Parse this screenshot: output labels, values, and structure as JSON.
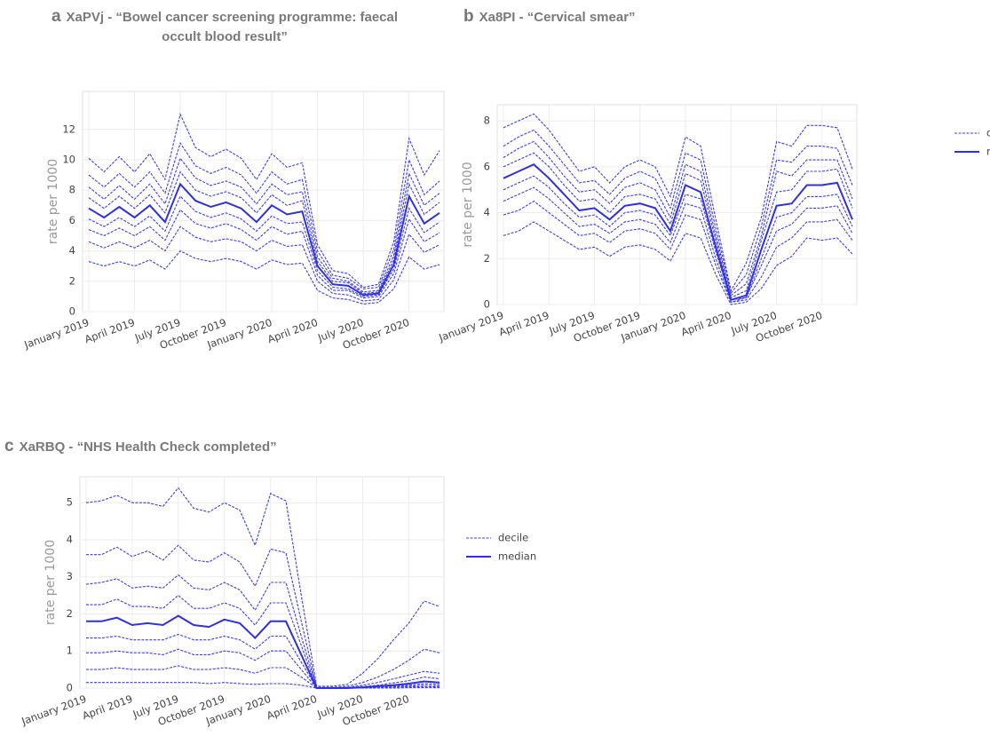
{
  "chart_data": [
    {
      "type": "line",
      "panel_label": "a",
      "title": "XaPVj -  “Bowel cancer screening programme: faecal occult blood result”",
      "ylabel": "rate per 1000",
      "categories": [
        "January 2019",
        null,
        null,
        "April 2019",
        null,
        null,
        "July 2019",
        null,
        null,
        "October 2019",
        null,
        null,
        "January 2020",
        null,
        null,
        "April 2020",
        null,
        null,
        "July 2020",
        null,
        null,
        "October 2020",
        null,
        null
      ],
      "ylim": [
        0,
        14.5
      ],
      "yticks": [
        0,
        2,
        4,
        6,
        8,
        10,
        12
      ],
      "grid": true,
      "legend": false,
      "deciles": {
        "color": "#3c3cf0",
        "dashed": true,
        "lines": [
          [
            3.3,
            3.0,
            3.3,
            3.0,
            3.4,
            2.8,
            4.0,
            3.5,
            3.3,
            3.5,
            3.3,
            2.8,
            3.4,
            3.1,
            3.2,
            1.4,
            0.9,
            0.8,
            0.5,
            0.6,
            1.5,
            3.6,
            2.8,
            3.1
          ],
          [
            4.6,
            4.2,
            4.6,
            4.2,
            4.7,
            4.0,
            5.6,
            4.9,
            4.6,
            4.8,
            4.6,
            4.0,
            4.7,
            4.3,
            4.4,
            2.0,
            1.2,
            1.1,
            0.7,
            0.8,
            2.1,
            5.1,
            3.9,
            4.4
          ],
          [
            5.4,
            5.0,
            5.5,
            5.0,
            5.6,
            4.7,
            6.7,
            5.8,
            5.5,
            5.8,
            5.4,
            4.7,
            5.6,
            5.1,
            5.3,
            2.4,
            1.4,
            1.4,
            0.9,
            1.0,
            2.5,
            6.1,
            4.6,
            5.2
          ],
          [
            6.1,
            5.6,
            6.2,
            5.6,
            6.3,
            5.3,
            7.6,
            6.6,
            6.2,
            6.5,
            6.1,
            5.3,
            6.3,
            5.8,
            5.9,
            2.7,
            1.6,
            1.5,
            1.0,
            1.1,
            2.8,
            6.8,
            5.2,
            5.9
          ],
          [
            7.5,
            6.8,
            7.6,
            6.8,
            7.7,
            6.5,
            9.2,
            8.0,
            7.6,
            7.9,
            7.5,
            6.5,
            7.7,
            7.0,
            7.3,
            3.3,
            2.0,
            1.9,
            1.2,
            1.3,
            3.4,
            8.4,
            6.4,
            7.2
          ],
          [
            8.2,
            7.4,
            8.3,
            7.4,
            8.4,
            7.1,
            10.1,
            8.8,
            8.3,
            8.6,
            8.2,
            7.1,
            8.4,
            7.7,
            7.9,
            3.6,
            2.2,
            2.0,
            1.3,
            1.4,
            3.7,
            9.1,
            7.0,
            7.8
          ],
          [
            9.0,
            8.2,
            9.1,
            8.2,
            9.2,
            7.8,
            11.1,
            9.6,
            9.1,
            9.5,
            9.0,
            7.8,
            9.2,
            8.4,
            8.7,
            4.0,
            2.4,
            2.2,
            1.5,
            1.6,
            4.1,
            10.0,
            7.7,
            8.6
          ],
          [
            10.1,
            9.2,
            10.2,
            9.2,
            10.4,
            8.7,
            13.0,
            10.8,
            10.2,
            10.7,
            10.1,
            8.7,
            10.4,
            9.5,
            9.8,
            4.4,
            2.7,
            2.5,
            1.6,
            1.8,
            4.6,
            11.4,
            9.0,
            10.6
          ]
        ]
      },
      "median": {
        "color": "#3030e0",
        "values": [
          6.8,
          6.2,
          6.9,
          6.2,
          7.0,
          5.9,
          8.4,
          7.3,
          6.9,
          7.2,
          6.8,
          5.9,
          7.0,
          6.4,
          6.6,
          3.0,
          1.8,
          1.7,
          1.1,
          1.2,
          3.1,
          7.6,
          5.8,
          6.5
        ]
      }
    },
    {
      "type": "line",
      "panel_label": "b",
      "title": "Xa8PI -  “Cervical smear”",
      "ylabel": "rate per 1000",
      "categories": [
        "January 2019",
        null,
        null,
        "April 2019",
        null,
        null,
        "July 2019",
        null,
        null,
        "October 2019",
        null,
        null,
        "January 2020",
        null,
        null,
        "April 2020",
        null,
        null,
        "July 2020",
        null,
        null,
        "October 2020",
        null,
        null
      ],
      "ylim": [
        0,
        8.7
      ],
      "yticks": [
        0,
        2,
        4,
        6,
        8
      ],
      "grid": true,
      "legend": true,
      "deciles": {
        "name": "decile",
        "color": "#3c3cf0",
        "dashed": true,
        "lines": [
          [
            3.0,
            3.2,
            3.6,
            3.2,
            2.8,
            2.4,
            2.5,
            2.1,
            2.5,
            2.6,
            2.4,
            1.9,
            3.1,
            2.9,
            1.3,
            0.0,
            0.1,
            0.7,
            1.7,
            2.1,
            2.9,
            2.8,
            2.9,
            2.2
          ],
          [
            3.9,
            4.1,
            4.5,
            4.0,
            3.5,
            3.0,
            3.1,
            2.7,
            3.2,
            3.3,
            3.1,
            2.4,
            3.9,
            3.7,
            1.7,
            0.1,
            0.2,
            1.2,
            2.5,
            2.9,
            3.6,
            3.6,
            3.7,
            2.8
          ],
          [
            4.5,
            4.8,
            5.1,
            4.6,
            4.0,
            3.4,
            3.5,
            3.1,
            3.6,
            3.7,
            3.5,
            2.7,
            4.4,
            4.2,
            2.0,
            0.1,
            0.3,
            1.7,
            3.2,
            3.5,
            4.2,
            4.2,
            4.3,
            3.1
          ],
          [
            5.0,
            5.3,
            5.6,
            5.1,
            4.4,
            3.8,
            3.9,
            3.4,
            4.0,
            4.1,
            3.9,
            3.0,
            4.8,
            4.6,
            2.3,
            0.2,
            0.3,
            2.0,
            3.8,
            4.0,
            4.7,
            4.7,
            4.8,
            3.4
          ],
          [
            6.0,
            6.3,
            6.6,
            6.0,
            5.2,
            4.5,
            4.6,
            4.0,
            4.7,
            4.8,
            4.6,
            3.5,
            5.7,
            5.4,
            2.8,
            0.3,
            0.6,
            2.8,
            4.9,
            5.0,
            5.8,
            5.8,
            5.9,
            4.2
          ],
          [
            6.4,
            6.8,
            7.1,
            6.4,
            5.6,
            4.9,
            5.0,
            4.4,
            5.1,
            5.3,
            5.0,
            3.8,
            6.1,
            5.8,
            3.0,
            0.4,
            0.9,
            3.0,
            5.8,
            5.6,
            6.3,
            6.3,
            6.3,
            4.6
          ],
          [
            6.9,
            7.3,
            7.6,
            6.9,
            6.1,
            5.3,
            5.4,
            4.8,
            5.5,
            5.8,
            5.5,
            4.2,
            6.6,
            6.3,
            3.3,
            0.5,
            1.3,
            3.4,
            6.3,
            6.2,
            6.9,
            6.9,
            6.8,
            5.2
          ],
          [
            7.7,
            8.0,
            8.3,
            7.6,
            6.7,
            5.8,
            6.0,
            5.3,
            6.0,
            6.3,
            6.0,
            4.7,
            7.3,
            6.9,
            3.7,
            0.6,
            1.8,
            3.8,
            7.1,
            6.9,
            7.8,
            7.8,
            7.7,
            5.9
          ]
        ]
      },
      "median": {
        "name": "median",
        "color": "#3030e0",
        "values": [
          5.5,
          5.8,
          6.1,
          5.5,
          4.8,
          4.1,
          4.2,
          3.7,
          4.3,
          4.4,
          4.2,
          3.2,
          5.2,
          4.9,
          2.5,
          0.2,
          0.4,
          2.4,
          4.3,
          4.4,
          5.2,
          5.2,
          5.3,
          3.7
        ]
      }
    },
    {
      "type": "line",
      "panel_label": "c",
      "title": "XaRBQ - “NHS Health Check completed”",
      "ylabel": "rate per 1000",
      "categories": [
        "January 2019",
        null,
        null,
        "April 2019",
        null,
        null,
        "July 2019",
        null,
        null,
        "October 2019",
        null,
        null,
        "January 2020",
        null,
        null,
        "April 2020",
        null,
        null,
        "July 2020",
        null,
        null,
        "October 2020",
        null,
        null
      ],
      "ylim": [
        0,
        5.7
      ],
      "yticks": [
        0,
        1,
        2,
        3,
        4,
        5
      ],
      "grid": true,
      "legend": true,
      "deciles": {
        "name": "decile",
        "color": "#3c3cf0",
        "dashed": true,
        "lines": [
          [
            0.15,
            0.15,
            0.15,
            0.15,
            0.15,
            0.15,
            0.15,
            0.15,
            0.12,
            0.15,
            0.12,
            0.1,
            0.12,
            0.12,
            0.08,
            0,
            0,
            0,
            0,
            0,
            0,
            0.01,
            0.01,
            0.01
          ],
          [
            0.5,
            0.5,
            0.55,
            0.5,
            0.5,
            0.5,
            0.6,
            0.5,
            0.5,
            0.55,
            0.5,
            0.4,
            0.55,
            0.55,
            0.3,
            0,
            0,
            0,
            0,
            0.01,
            0.02,
            0.03,
            0.04,
            0.03
          ],
          [
            0.95,
            0.95,
            1.0,
            0.95,
            0.95,
            0.9,
            1.05,
            0.9,
            0.9,
            1.0,
            0.95,
            0.75,
            1.0,
            1.0,
            0.5,
            0,
            0,
            0,
            0.01,
            0.02,
            0.03,
            0.05,
            0.08,
            0.06
          ],
          [
            1.35,
            1.35,
            1.4,
            1.3,
            1.3,
            1.3,
            1.45,
            1.3,
            1.3,
            1.4,
            1.3,
            1.05,
            1.4,
            1.4,
            0.7,
            0,
            0,
            0,
            0.01,
            0.03,
            0.05,
            0.08,
            0.12,
            0.1
          ],
          [
            2.25,
            2.25,
            2.4,
            2.2,
            2.2,
            2.15,
            2.5,
            2.15,
            2.15,
            2.3,
            2.15,
            1.7,
            2.3,
            2.3,
            1.15,
            0,
            0,
            0.01,
            0.04,
            0.08,
            0.14,
            0.2,
            0.3,
            0.25
          ],
          [
            2.8,
            2.85,
            2.95,
            2.7,
            2.75,
            2.7,
            3.05,
            2.7,
            2.65,
            2.85,
            2.65,
            2.1,
            2.85,
            2.85,
            1.4,
            0.01,
            0.01,
            0.02,
            0.08,
            0.15,
            0.25,
            0.35,
            0.45,
            0.4
          ],
          [
            3.6,
            3.6,
            3.8,
            3.55,
            3.7,
            3.45,
            3.85,
            3.45,
            3.4,
            3.65,
            3.4,
            2.75,
            3.75,
            3.65,
            1.8,
            0.02,
            0.02,
            0.05,
            0.15,
            0.3,
            0.5,
            0.75,
            1.05,
            0.95
          ],
          [
            5.0,
            5.05,
            5.2,
            5.0,
            5.0,
            4.9,
            5.4,
            4.85,
            4.75,
            5.0,
            4.8,
            3.85,
            5.25,
            5.05,
            2.5,
            0.05,
            0.05,
            0.1,
            0.4,
            0.8,
            1.3,
            1.75,
            2.35,
            2.2
          ]
        ]
      },
      "median": {
        "name": "median",
        "color": "#3030e0",
        "values": [
          1.8,
          1.8,
          1.9,
          1.7,
          1.75,
          1.7,
          1.95,
          1.7,
          1.65,
          1.85,
          1.75,
          1.35,
          1.8,
          1.8,
          0.9,
          0,
          0,
          0,
          0.02,
          0.05,
          0.08,
          0.12,
          0.18,
          0.15
        ]
      }
    }
  ]
}
